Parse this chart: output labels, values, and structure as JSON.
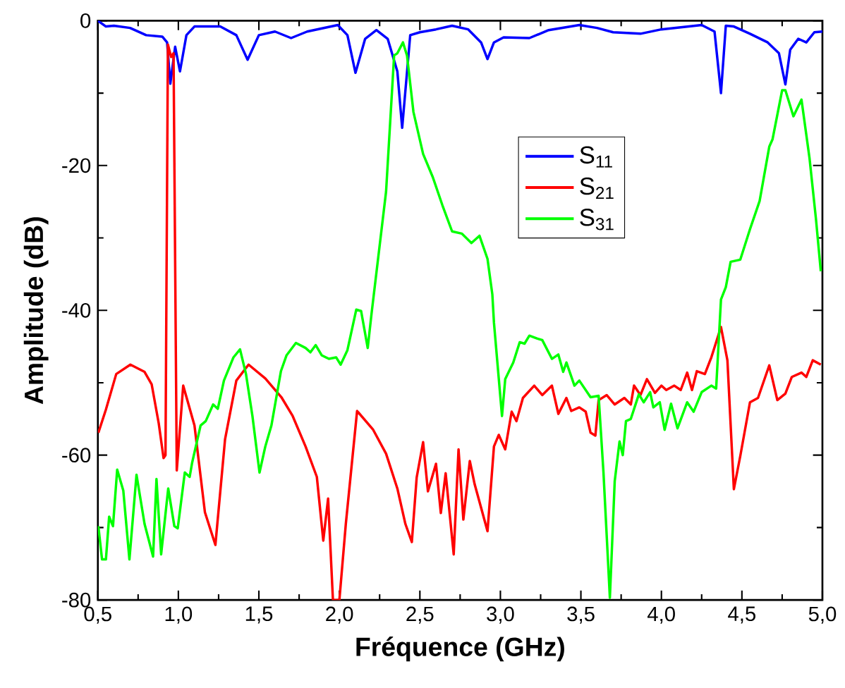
{
  "chart_data": {
    "type": "line",
    "xlabel": "Fréquence (GHz)",
    "ylabel": "Amplitude (dB)",
    "xlim": [
      0.5,
      5.0
    ],
    "ylim": [
      -80,
      0
    ],
    "xticks": [
      {
        "value": 0.5,
        "label": "0,5"
      },
      {
        "value": 1.0,
        "label": "1,0"
      },
      {
        "value": 1.5,
        "label": "1,5"
      },
      {
        "value": 2.0,
        "label": "2,0"
      },
      {
        "value": 2.5,
        "label": "2,5"
      },
      {
        "value": 3.0,
        "label": "3,0"
      },
      {
        "value": 3.5,
        "label": "3,5"
      },
      {
        "value": 4.0,
        "label": "4,0"
      },
      {
        "value": 4.5,
        "label": "4,5"
      },
      {
        "value": 5.0,
        "label": "5,0"
      }
    ],
    "yticks": [
      -80,
      -60,
      -40,
      -20,
      0
    ],
    "legend": "top right",
    "grid": false,
    "marker": "none",
    "line_style": "solid",
    "series": [
      {
        "name": "S$_{11}$",
        "color": "#0000ff",
        "x": [
          0.5,
          0.55,
          0.6,
          0.7,
          0.8,
          0.9,
          0.93,
          0.95,
          0.98,
          1.01,
          1.05,
          1.1,
          1.26,
          1.36,
          1.43,
          1.5,
          1.6,
          1.7,
          1.8,
          1.99,
          2.05,
          2.1,
          2.16,
          2.23,
          2.3,
          2.36,
          2.39,
          2.44,
          2.5,
          2.6,
          2.7,
          2.8,
          2.88,
          2.92,
          2.96,
          3.02,
          3.18,
          3.3,
          3.49,
          3.6,
          3.7,
          3.87,
          4.0,
          4.25,
          4.33,
          4.37,
          4.4,
          4.45,
          4.55,
          4.66,
          4.73,
          4.77,
          4.8,
          4.85,
          4.9,
          4.95,
          5.0
        ],
        "values": [
          0,
          -0.8,
          -0.7,
          -1,
          -2,
          -2.2,
          -3,
          -8.7,
          -3.6,
          -7,
          -2,
          -0.8,
          -0.8,
          -2,
          -5.4,
          -2,
          -1.5,
          -2.4,
          -1.5,
          -0.6,
          -2,
          -7.2,
          -2.5,
          -1.3,
          -2.5,
          -7,
          -14.8,
          -2,
          -1.6,
          -1.2,
          -0.7,
          -1.2,
          -3,
          -5.3,
          -3,
          -2.3,
          -2.4,
          -1.3,
          -0.6,
          -1,
          -1.6,
          -1.8,
          -1.2,
          -0.6,
          -1.5,
          -10,
          -0.7,
          -0.8,
          -1.8,
          -3,
          -4.5,
          -8.8,
          -4,
          -2.5,
          -3,
          -1.6,
          -1.5
        ]
      },
      {
        "name": "S$_{21}$",
        "color": "#ff0000",
        "x": [
          0.503,
          0.55,
          0.614,
          0.702,
          0.79,
          0.834,
          0.878,
          0.908,
          0.92,
          0.935,
          0.955,
          0.97,
          0.99,
          1.03,
          1.1,
          1.165,
          1.23,
          1.29,
          1.36,
          1.436,
          1.54,
          1.64,
          1.71,
          1.79,
          1.86,
          1.9,
          1.93,
          1.96,
          2.0,
          2.04,
          2.11,
          2.21,
          2.29,
          2.36,
          2.41,
          2.45,
          2.48,
          2.52,
          2.55,
          2.6,
          2.63,
          2.66,
          2.71,
          2.74,
          2.77,
          2.81,
          2.84,
          2.92,
          2.96,
          2.99,
          3.03,
          3.07,
          3.1,
          3.14,
          3.21,
          3.26,
          3.32,
          3.36,
          3.41,
          3.44,
          3.49,
          3.53,
          3.56,
          3.59,
          3.61,
          3.66,
          3.71,
          3.77,
          3.81,
          3.83,
          3.87,
          3.91,
          3.96,
          4.0,
          4.03,
          4.08,
          4.12,
          4.16,
          4.19,
          4.22,
          4.27,
          4.31,
          4.37,
          4.41,
          4.45,
          4.49,
          4.55,
          4.6,
          4.67,
          4.72,
          4.77,
          4.81,
          4.87,
          4.9,
          4.94,
          4.99
        ],
        "values": [
          -56.9,
          -53.7,
          -48.8,
          -47.5,
          -48.5,
          -50.2,
          -55.6,
          -60.4,
          -60,
          -3.3,
          -5,
          -4.5,
          -62.1,
          -50.4,
          -55.9,
          -67.9,
          -72.4,
          -57.8,
          -49.7,
          -47.5,
          -49.4,
          -52,
          -54.6,
          -58.8,
          -63,
          -71.8,
          -66,
          -80,
          -80,
          -69.5,
          -53.9,
          -56.5,
          -59.8,
          -64.6,
          -69.5,
          -72,
          -63.1,
          -58.2,
          -65,
          -61.2,
          -68,
          -62.5,
          -73.7,
          -59.2,
          -68.9,
          -60.8,
          -64,
          -70.5,
          -58.8,
          -57.2,
          -59.2,
          -54,
          -55.3,
          -52.1,
          -50.4,
          -51.7,
          -50.4,
          -54.3,
          -52.1,
          -53.9,
          -53.4,
          -54,
          -56.9,
          -57.3,
          -52.4,
          -51.7,
          -53,
          -52.1,
          -53,
          -50.4,
          -51.7,
          -49.5,
          -51.4,
          -50.4,
          -51,
          -50.4,
          -51,
          -48.6,
          -51,
          -48.4,
          -48.8,
          -46.5,
          -42.3,
          -46.9,
          -64.7,
          -60.1,
          -52.7,
          -52.1,
          -47.6,
          -52.4,
          -51.5,
          -49.2,
          -48.6,
          -49.2,
          -46.9,
          -47.5
        ]
      },
      {
        "name": "S$_{31}$",
        "color": "#00ff00",
        "x": [
          0.503,
          0.526,
          0.55,
          0.57,
          0.594,
          0.62,
          0.658,
          0.696,
          0.74,
          0.79,
          0.843,
          0.864,
          0.893,
          0.937,
          0.975,
          0.996,
          1.04,
          1.07,
          1.085,
          1.138,
          1.17,
          1.216,
          1.245,
          1.283,
          1.342,
          1.383,
          1.42,
          1.46,
          1.504,
          1.54,
          1.578,
          1.637,
          1.672,
          1.73,
          1.79,
          1.82,
          1.853,
          1.89,
          1.935,
          1.98,
          2.008,
          2.05,
          2.105,
          2.135,
          2.176,
          2.2,
          2.29,
          2.34,
          2.36,
          2.395,
          2.42,
          2.46,
          2.52,
          2.58,
          2.64,
          2.7,
          2.76,
          2.82,
          2.87,
          2.92,
          2.95,
          2.96,
          3.01,
          3.03,
          3.08,
          3.12,
          3.15,
          3.18,
          3.23,
          3.26,
          3.32,
          3.36,
          3.39,
          3.41,
          3.46,
          3.49,
          3.56,
          3.61,
          3.64,
          3.68,
          3.71,
          3.74,
          3.76,
          3.78,
          3.81,
          3.86,
          3.89,
          3.93,
          3.95,
          3.99,
          4.02,
          4.06,
          4.1,
          4.16,
          4.2,
          4.25,
          4.31,
          4.34,
          4.37,
          4.4,
          4.43,
          4.49,
          4.55,
          4.61,
          4.67,
          4.69,
          4.75,
          4.77,
          4.82,
          4.87,
          4.92,
          4.96,
          4.99
        ],
        "values": [
          -69.8,
          -74.4,
          -74.4,
          -68.5,
          -69.8,
          -62,
          -64.9,
          -74.4,
          -62.7,
          -69.5,
          -74,
          -63.3,
          -73.7,
          -64.6,
          -69.8,
          -70.1,
          -62.4,
          -63,
          -61.1,
          -55.9,
          -55.3,
          -53,
          -53.6,
          -49.7,
          -46.5,
          -45.4,
          -48.8,
          -54.6,
          -62.4,
          -58.8,
          -55.9,
          -48.4,
          -46.2,
          -44.5,
          -45.2,
          -45.8,
          -44.8,
          -46.2,
          -46.7,
          -46.5,
          -47.5,
          -45.5,
          -39.9,
          -40.1,
          -45.2,
          -40.4,
          -23.6,
          -4.8,
          -4.5,
          -3,
          -4.8,
          -12.6,
          -18.4,
          -21.6,
          -25.5,
          -29.1,
          -29.4,
          -30.7,
          -29.7,
          -32.9,
          -37.8,
          -41.7,
          -54.6,
          -49.5,
          -47.2,
          -44.4,
          -44.6,
          -43.5,
          -43.9,
          -44.1,
          -46.7,
          -46.1,
          -48.5,
          -47.2,
          -50.4,
          -49.7,
          -52,
          -51.8,
          -62.3,
          -79.7,
          -63.6,
          -58.1,
          -60,
          -55.3,
          -55,
          -51.6,
          -52.7,
          -51.3,
          -53.4,
          -52.7,
          -56.5,
          -52.9,
          -56.3,
          -52.7,
          -54,
          -51.3,
          -50.4,
          -50.8,
          -38.5,
          -36.8,
          -33.3,
          -33,
          -28.8,
          -24.9,
          -17.4,
          -16.4,
          -9.6,
          -9.6,
          -13.2,
          -10.9,
          -19,
          -27.4,
          -34.6
        ]
      }
    ]
  }
}
